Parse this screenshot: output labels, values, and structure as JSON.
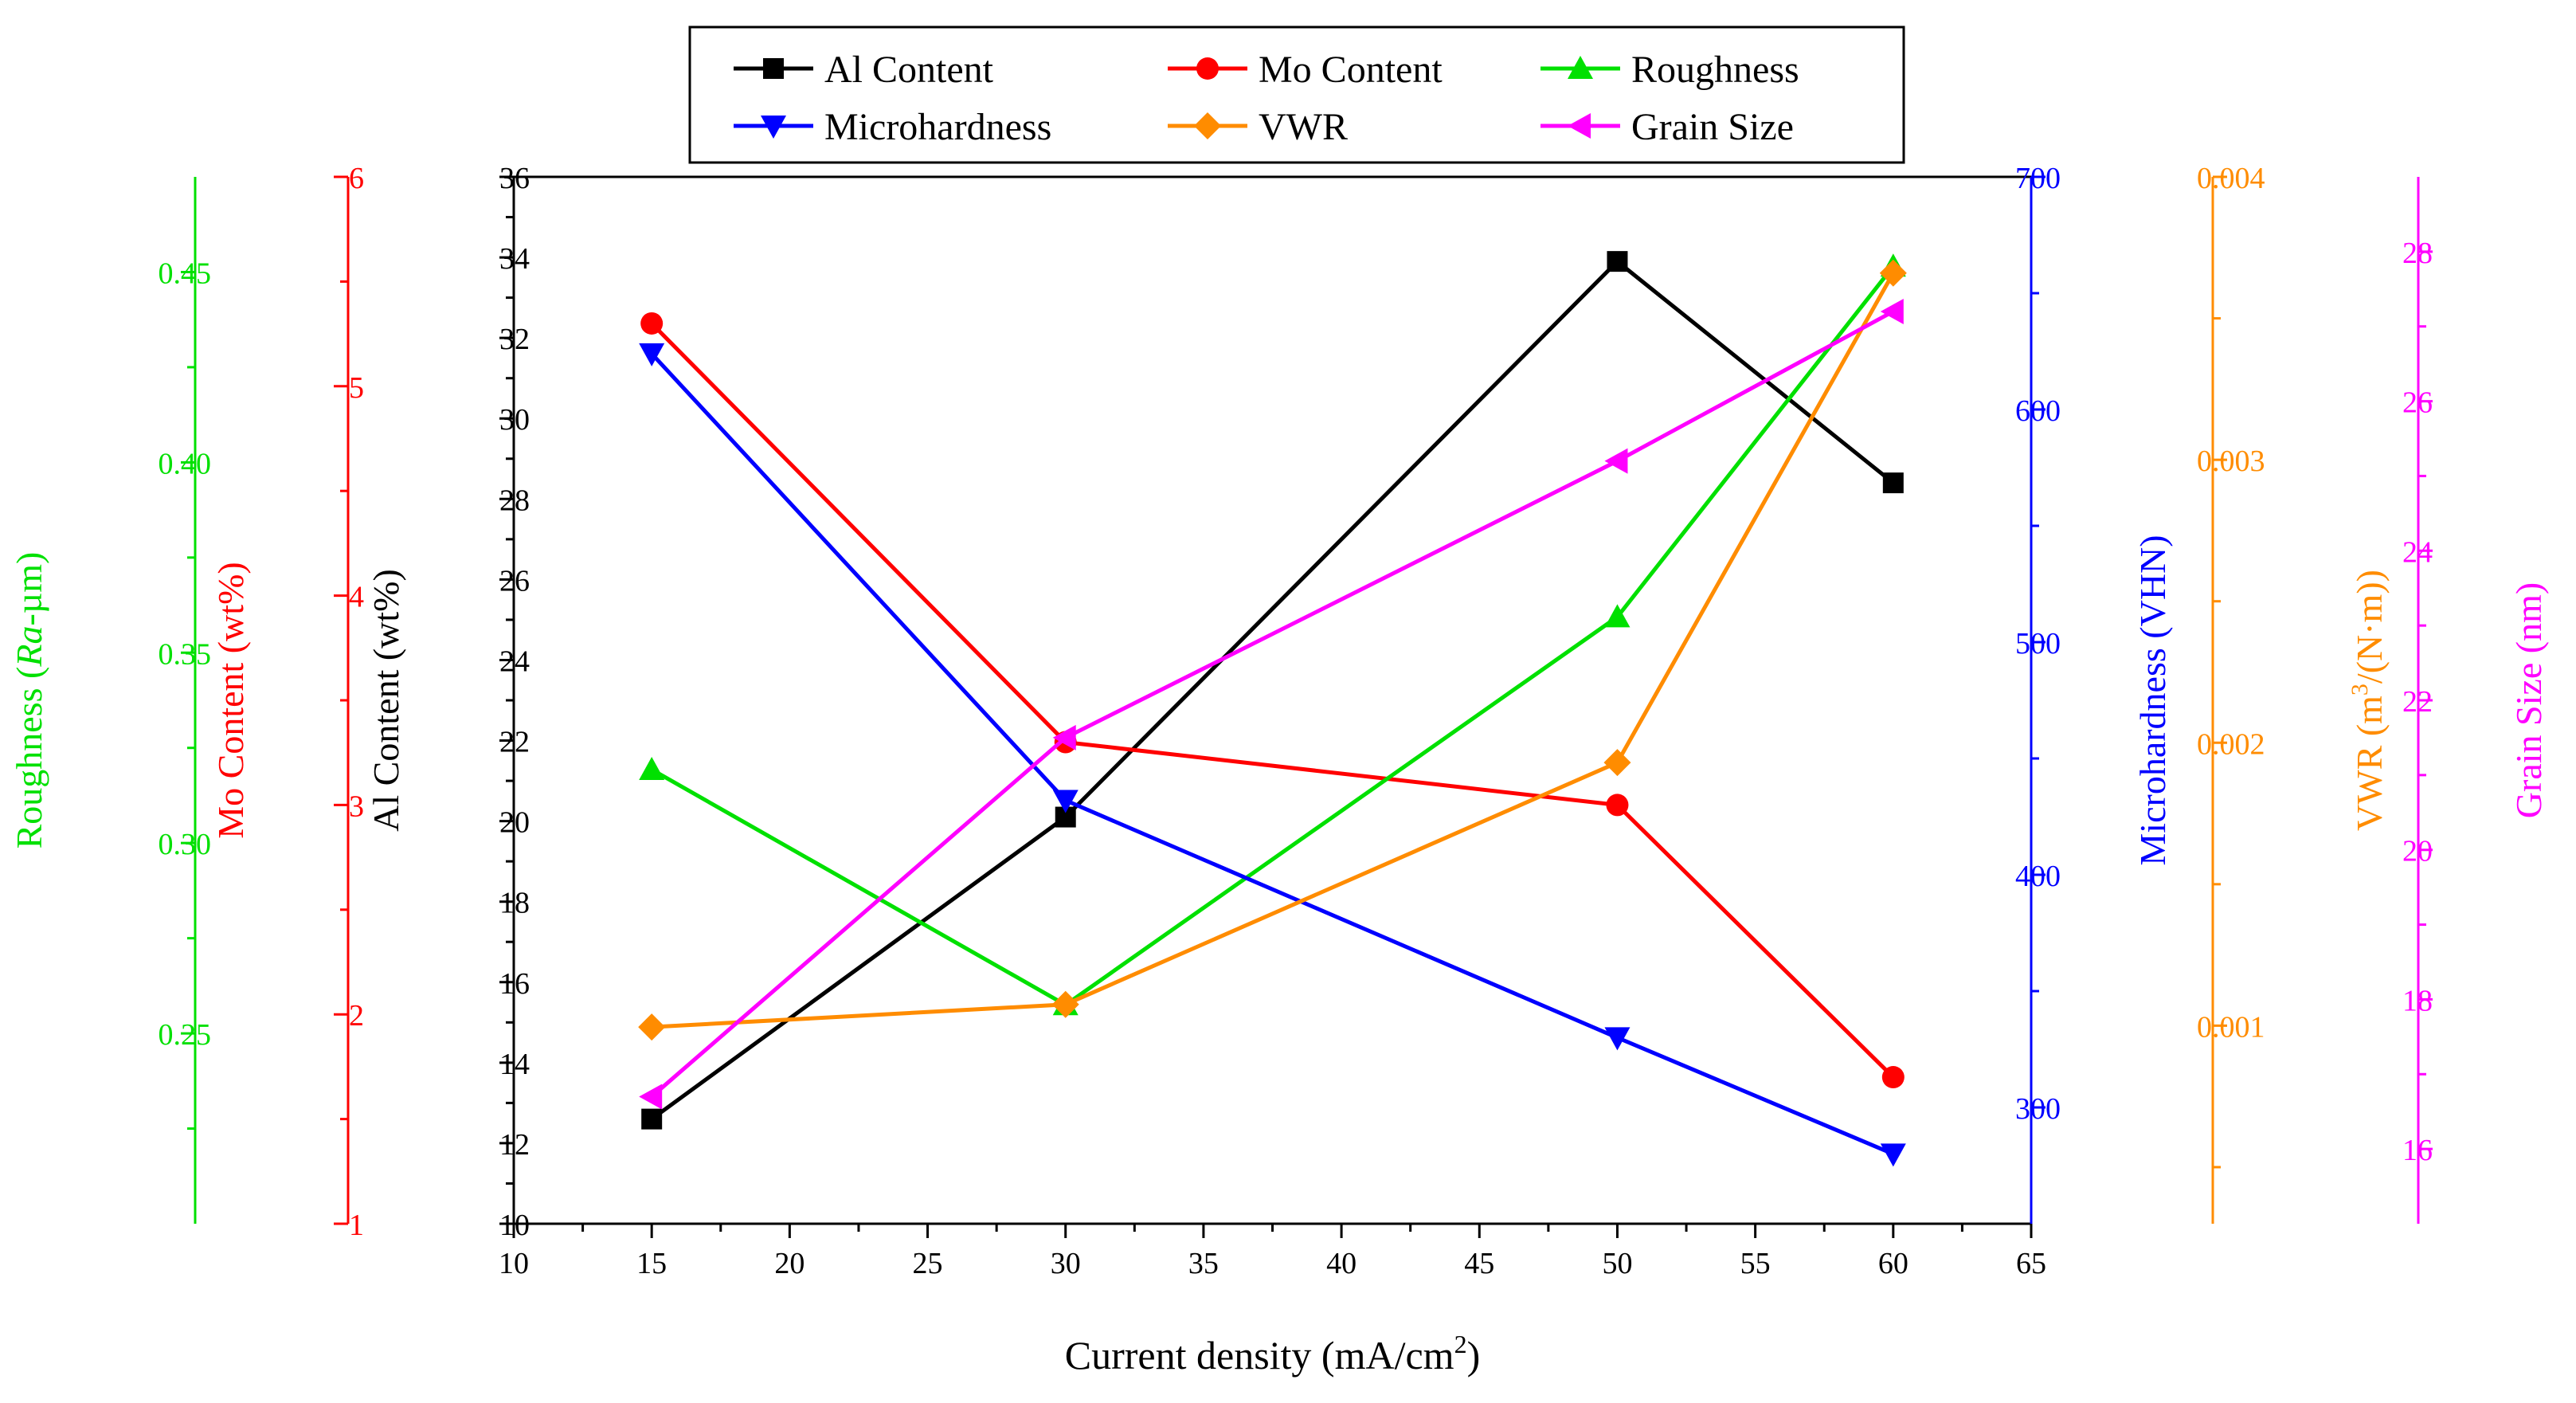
{
  "chart_data": {
    "type": "line",
    "xlabel": "Current density (mA/cm",
    "xlabel_sup": "2",
    "xlabel_end": ")",
    "xlim": [
      10,
      65
    ],
    "x_ticks": [
      10,
      15,
      20,
      25,
      30,
      35,
      40,
      45,
      50,
      55,
      60,
      65
    ],
    "x": [
      15,
      30,
      50,
      60
    ],
    "legend_position": "top-center",
    "series": [
      {
        "name": "Al Content",
        "color": "#000000",
        "marker": "square",
        "axis": "al",
        "values": [
          12.6,
          20.1,
          33.9,
          28.4
        ]
      },
      {
        "name": "Mo Content",
        "color": "#ff0000",
        "marker": "circle",
        "axis": "mo",
        "values": [
          5.3,
          3.3,
          3.0,
          1.7
        ]
      },
      {
        "name": "Roughness",
        "color": "#00e000",
        "marker": "triangle-up",
        "axis": "rough",
        "values": [
          0.3193,
          0.2575,
          0.3594,
          0.4515
        ]
      },
      {
        "name": "Microhardness",
        "color": "#0000ff",
        "marker": "triangle-down",
        "axis": "hard",
        "values": [
          624,
          432,
          330,
          280
        ]
      },
      {
        "name": "VWR",
        "color": "#ff8c00",
        "marker": "diamond",
        "axis": "vwr",
        "values": [
          0.000995,
          0.001075,
          0.00193,
          0.00366
        ]
      },
      {
        "name": "Grain Size",
        "color": "#ff00ff",
        "marker": "triangle-left",
        "axis": "grain",
        "values": [
          16.7,
          21.5,
          25.2,
          27.2
        ]
      }
    ],
    "axes": {
      "al": {
        "label": "Al Content (wt%)",
        "color": "#000000",
        "side": "left",
        "range": [
          10,
          36
        ],
        "ticks": [
          10,
          12,
          14,
          16,
          18,
          20,
          22,
          24,
          26,
          28,
          30,
          32,
          34,
          36
        ]
      },
      "mo": {
        "label": "Mo Content (wt%)",
        "color": "#ff0000",
        "side": "left",
        "range": [
          1,
          6
        ],
        "ticks": [
          1,
          2,
          3,
          4,
          5,
          6
        ]
      },
      "rough": {
        "label_pre": "Roughness (",
        "label_italic": "Ra",
        "label_post": "-µm)",
        "color": "#00e000",
        "side": "left",
        "range": [
          0.2,
          0.475
        ],
        "ticks": [
          0.25,
          0.3,
          0.35,
          0.4,
          0.45
        ],
        "tick_labels": [
          "0.25",
          "0.30",
          "0.35",
          "0.40",
          "0.45"
        ]
      },
      "hard": {
        "label": "Microhardness (VHN)",
        "color": "#0000ff",
        "side": "right",
        "range": [
          250,
          700
        ],
        "ticks": [
          300,
          400,
          500,
          600,
          700
        ]
      },
      "vwr": {
        "label_pre": "VWR (m",
        "label_sup": "3",
        "label_post": "/(N·m))",
        "color": "#ff8c00",
        "side": "right",
        "range": [
          0.0003,
          0.004
        ],
        "ticks": [
          0.001,
          0.002,
          0.003,
          0.004
        ],
        "tick_labels": [
          "0.001",
          "0.002",
          "0.003",
          "0.004"
        ]
      },
      "grain": {
        "label": "Grain Size (nm)",
        "color": "#ff00ff",
        "side": "right",
        "range": [
          15,
          29
        ],
        "ticks": [
          16,
          18,
          20,
          22,
          24,
          26,
          28
        ]
      }
    }
  }
}
